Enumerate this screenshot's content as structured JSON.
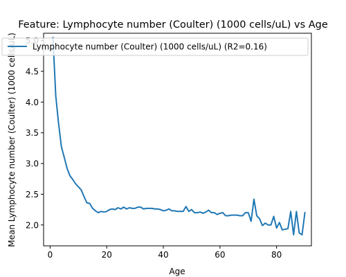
{
  "chart_data": {
    "type": "line",
    "title": "Feature: Lymphocyte number (Coulter) (1000 cells/uL) vs Age",
    "xlabel": "Age",
    "ylabel": "Mean Lymphocyte number (Coulter) (1000 cells/uL)",
    "xlim": [
      -2.3,
      92.3
    ],
    "ylim": [
      1.66,
      5.12
    ],
    "xticks": [
      0,
      20,
      40,
      60,
      80
    ],
    "yticks": [
      2.0,
      2.5,
      3.0,
      3.5,
      4.0,
      4.5,
      5.0
    ],
    "xtick_labels": [
      "0",
      "20",
      "40",
      "60",
      "80"
    ],
    "ytick_labels": [
      "2.0",
      "2.5",
      "3.0",
      "3.5",
      "4.0",
      "4.5",
      "5.0"
    ],
    "grid": false,
    "legend_position": "top",
    "series": [
      {
        "name": "Lymphocyte number (Coulter) (1000 cells/uL) (R2=0.16)",
        "color": "#1f77b4",
        "x": [
          1,
          2,
          3,
          4,
          5,
          6,
          7,
          8,
          9,
          10,
          11,
          12,
          13,
          14,
          15,
          16,
          17,
          18,
          19,
          20,
          21,
          22,
          23,
          24,
          25,
          26,
          27,
          28,
          29,
          30,
          31,
          32,
          33,
          34,
          35,
          36,
          37,
          38,
          39,
          40,
          41,
          42,
          43,
          44,
          45,
          46,
          47,
          48,
          49,
          50,
          51,
          52,
          53,
          54,
          55,
          56,
          57,
          58,
          59,
          60,
          61,
          62,
          63,
          64,
          65,
          66,
          67,
          68,
          69,
          70,
          71,
          72,
          73,
          74,
          75,
          76,
          77,
          78,
          79,
          80,
          81,
          82,
          83,
          84,
          85,
          86,
          87,
          88,
          89,
          90
        ],
        "values": [
          5.05,
          4.1,
          3.65,
          3.27,
          3.1,
          2.92,
          2.8,
          2.74,
          2.67,
          2.62,
          2.57,
          2.46,
          2.36,
          2.35,
          2.27,
          2.23,
          2.2,
          2.22,
          2.21,
          2.22,
          2.25,
          2.26,
          2.25,
          2.28,
          2.26,
          2.29,
          2.26,
          2.28,
          2.27,
          2.27,
          2.29,
          2.29,
          2.26,
          2.27,
          2.27,
          2.27,
          2.26,
          2.26,
          2.25,
          2.23,
          2.24,
          2.26,
          2.23,
          2.23,
          2.22,
          2.22,
          2.22,
          2.3,
          2.22,
          2.25,
          2.2,
          2.2,
          2.21,
          2.19,
          2.21,
          2.24,
          2.2,
          2.2,
          2.17,
          2.19,
          2.2,
          2.15,
          2.15,
          2.16,
          2.16,
          2.16,
          2.15,
          2.15,
          2.2,
          2.2,
          2.06,
          2.42,
          2.15,
          2.1,
          1.99,
          2.03,
          2.0,
          2.0,
          2.14,
          1.95,
          2.04,
          1.92,
          1.93,
          1.94,
          2.22,
          1.84,
          2.22,
          1.87,
          1.84,
          2.2
        ]
      }
    ]
  }
}
